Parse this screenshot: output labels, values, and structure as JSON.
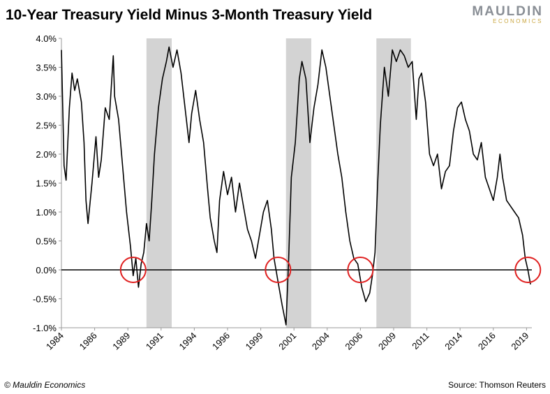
{
  "chart_data": {
    "type": "line",
    "title": "10-Year Treasury Yield Minus 3-Month Treasury Yield",
    "logo": "MAULDIN",
    "logo_sub": "ECONOMICS",
    "footer_left": "© Mauldin Economics",
    "footer_right": "Source: Thomson Reuters",
    "xlim": [
      1984,
      2019.4
    ],
    "xticks": [
      1984,
      {
        "value": 1986.5,
        "label": "1986"
      },
      1989,
      {
        "value": 1991.5,
        "label": "1991"
      },
      1994,
      {
        "value": 1996.5,
        "label": "1996"
      },
      1999,
      {
        "value": 2001.5,
        "label": "2001"
      },
      2004,
      {
        "value": 2006.5,
        "label": "2006"
      },
      2009,
      {
        "value": 2011.5,
        "label": "2011"
      },
      2014,
      {
        "value": 2016.5,
        "label": "2016"
      },
      2019
    ],
    "ylim": [
      -1,
      4
    ],
    "yticks": [
      {
        "value": -1,
        "label": "-1.0%"
      },
      {
        "value": -0.5,
        "label": "-0.5%"
      },
      {
        "value": 0,
        "label": "0.0%"
      },
      {
        "value": 0.5,
        "label": "0.5%"
      },
      {
        "value": 1,
        "label": "1.0%"
      },
      {
        "value": 1.5,
        "label": "1.5%"
      },
      {
        "value": 2,
        "label": "2.0%"
      },
      {
        "value": 2.5,
        "label": "2.5%"
      },
      {
        "value": 3,
        "label": "3.0%"
      },
      {
        "value": 3.5,
        "label": "3.5%"
      },
      {
        "value": 4,
        "label": "4.0%"
      }
    ],
    "recessions": [
      [
        1990.4,
        1992.3
      ],
      [
        2000.9,
        2002.8
      ],
      [
        2007.7,
        2010.3
      ]
    ],
    "recession_color": "#d3d3d3",
    "highlights": [
      1989.4,
      2000.3,
      2006.5,
      2019.1
    ],
    "highlight_color": "#e02020",
    "x": [
      1984.0,
      1984.2,
      1984.35,
      1984.6,
      1984.8,
      1985.0,
      1985.2,
      1985.5,
      1985.7,
      1985.85,
      1986.0,
      1986.3,
      1986.6,
      1986.8,
      1987.0,
      1987.3,
      1987.6,
      1987.9,
      1988.0,
      1988.3,
      1988.6,
      1988.9,
      1989.2,
      1989.4,
      1989.6,
      1989.8,
      1990.0,
      1990.2,
      1990.4,
      1990.6,
      1990.8,
      1991.0,
      1991.3,
      1991.6,
      1991.9,
      1992.1,
      1992.4,
      1992.7,
      1993.0,
      1993.3,
      1993.6,
      1993.8,
      1994.1,
      1994.4,
      1994.7,
      1995.0,
      1995.2,
      1995.5,
      1995.7,
      1995.9,
      1996.2,
      1996.5,
      1996.8,
      1997.1,
      1997.4,
      1997.7,
      1998.0,
      1998.3,
      1998.6,
      1998.9,
      1999.2,
      1999.5,
      1999.8,
      2000.0,
      2000.3,
      2000.6,
      2000.9,
      2001.1,
      2001.3,
      2001.6,
      2001.9,
      2002.1,
      2002.4,
      2002.7,
      2003.0,
      2003.3,
      2003.6,
      2003.9,
      2004.2,
      2004.5,
      2004.8,
      2005.1,
      2005.4,
      2005.7,
      2006.0,
      2006.3,
      2006.6,
      2006.9,
      2007.2,
      2007.4,
      2007.6,
      2007.8,
      2008.0,
      2008.3,
      2008.6,
      2008.9,
      2009.2,
      2009.5,
      2009.8,
      2010.1,
      2010.4,
      2010.7,
      2010.9,
      2011.1,
      2011.4,
      2011.7,
      2012.0,
      2012.3,
      2012.6,
      2012.9,
      2013.2,
      2013.5,
      2013.8,
      2014.1,
      2014.4,
      2014.7,
      2015.0,
      2015.3,
      2015.6,
      2015.9,
      2016.2,
      2016.5,
      2016.8,
      2017.0,
      2017.2,
      2017.5,
      2017.8,
      2018.1,
      2018.4,
      2018.7,
      2018.9,
      2019.1,
      2019.3
    ],
    "series": [
      {
        "name": "10Y-3M",
        "color": "#000000",
        "values": [
          3.8,
          1.8,
          1.55,
          2.8,
          3.4,
          3.1,
          3.3,
          2.9,
          2.2,
          1.2,
          0.8,
          1.5,
          2.3,
          1.6,
          1.9,
          2.8,
          2.6,
          3.7,
          3.0,
          2.6,
          1.8,
          1.0,
          0.4,
          -0.1,
          0.2,
          -0.3,
          0.1,
          0.3,
          0.8,
          0.5,
          1.2,
          2.0,
          2.8,
          3.3,
          3.6,
          3.85,
          3.5,
          3.8,
          3.4,
          2.8,
          2.2,
          2.7,
          3.1,
          2.6,
          2.2,
          1.4,
          0.9,
          0.5,
          0.3,
          1.2,
          1.7,
          1.3,
          1.6,
          1.0,
          1.5,
          1.1,
          0.7,
          0.5,
          0.2,
          0.6,
          1.0,
          1.2,
          0.7,
          0.2,
          -0.2,
          -0.6,
          -0.95,
          0.2,
          1.6,
          2.2,
          3.3,
          3.6,
          3.3,
          2.2,
          2.8,
          3.2,
          3.8,
          3.5,
          3.0,
          2.5,
          2.0,
          1.6,
          1.0,
          0.5,
          0.2,
          0.1,
          -0.3,
          -0.55,
          -0.4,
          -0.1,
          0.3,
          1.5,
          2.5,
          3.5,
          3.0,
          3.8,
          3.6,
          3.8,
          3.7,
          3.5,
          3.6,
          2.6,
          3.3,
          3.4,
          2.9,
          2.0,
          1.8,
          2.0,
          1.4,
          1.7,
          1.8,
          2.4,
          2.8,
          2.9,
          2.6,
          2.4,
          2.0,
          1.9,
          2.2,
          1.6,
          1.4,
          1.2,
          1.6,
          2.0,
          1.6,
          1.2,
          1.1,
          1.0,
          0.9,
          0.6,
          0.2,
          0.0,
          -0.25
        ]
      }
    ]
  }
}
